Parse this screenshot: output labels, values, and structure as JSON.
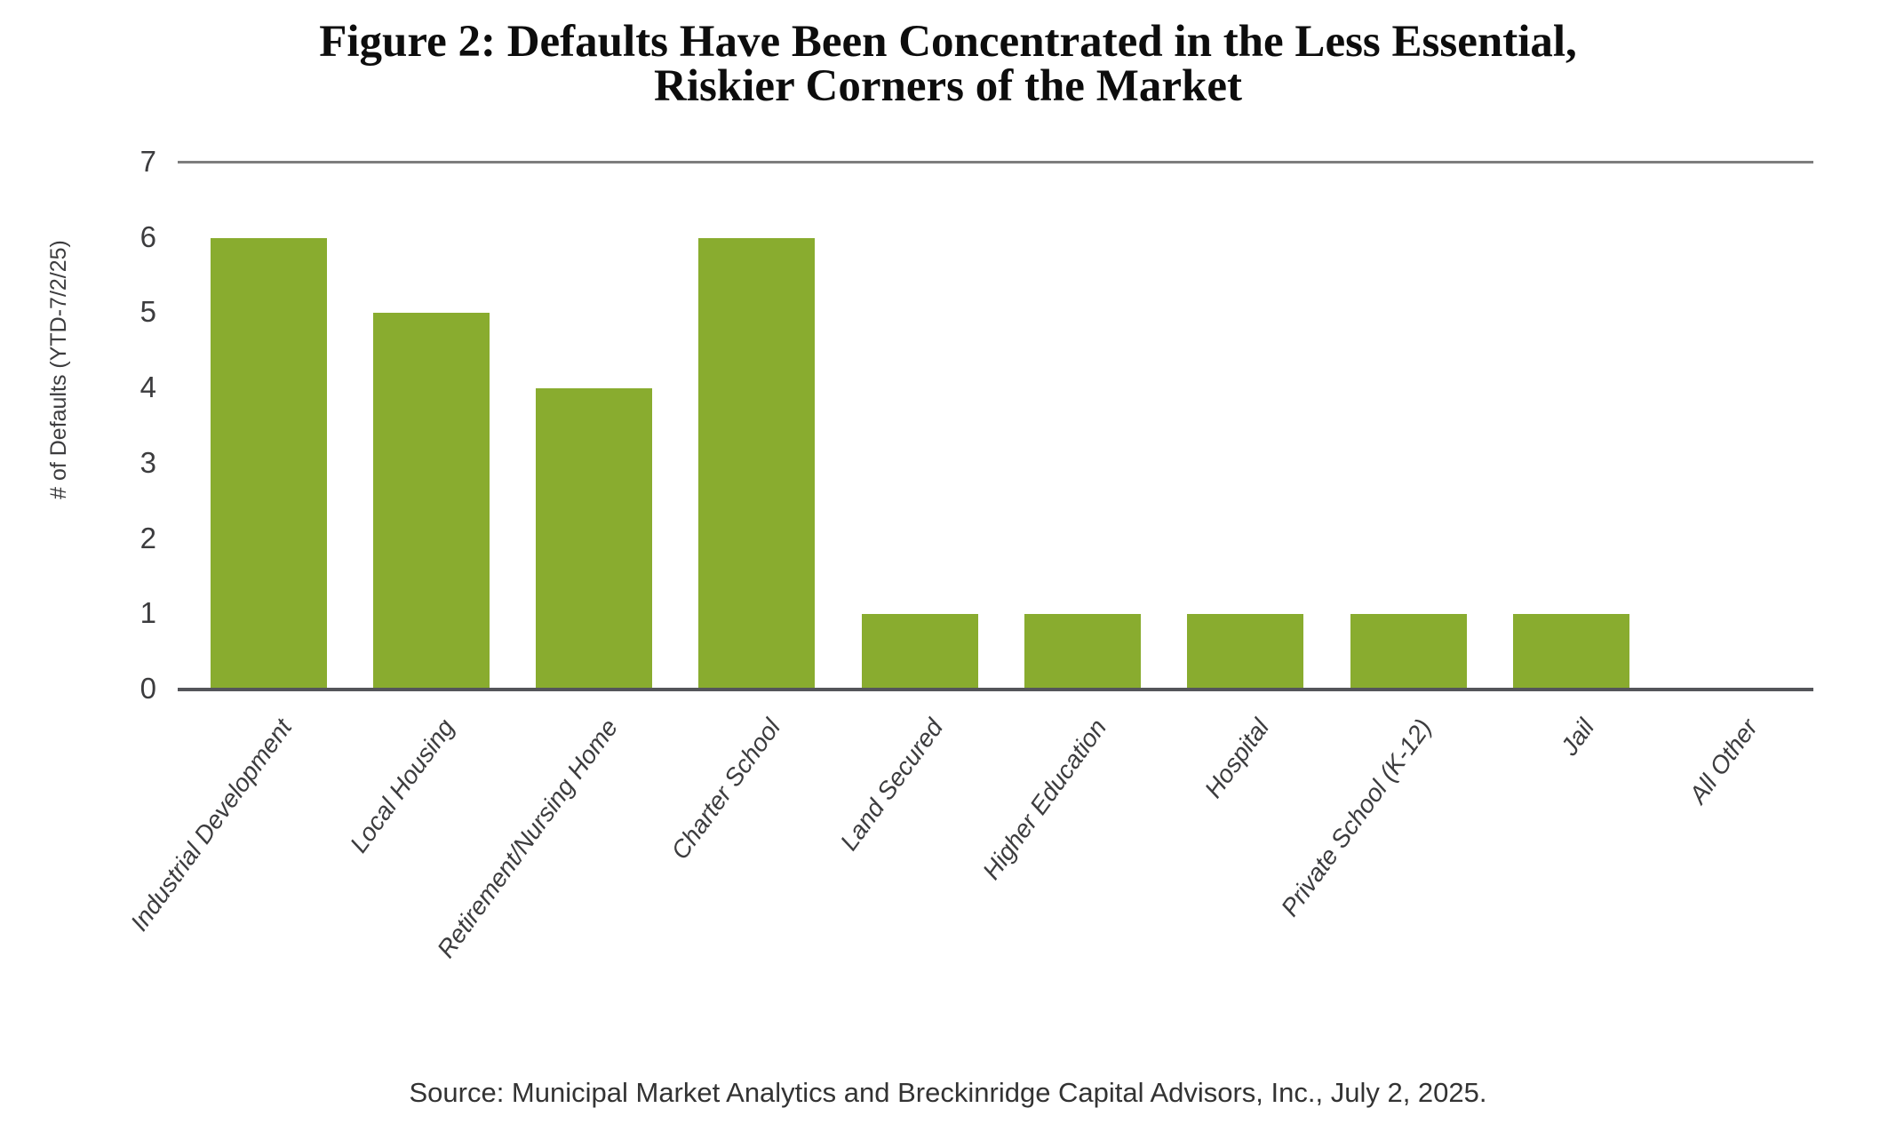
{
  "figure": {
    "title_line1": "Figure 2: Defaults Have Been Concentrated in the Less Essential,",
    "title_line2": "Riskier Corners of the Market",
    "source": "Source: Municipal Market Analytics and Breckinridge Capital Advisors, Inc., July 2, 2025."
  },
  "chart_data": {
    "type": "bar",
    "title": "Figure 2: Defaults Have Been Concentrated in the Less Essential, Riskier Corners of the Market",
    "categories": [
      "Industrial Development",
      "Local Housing",
      "Retirement/Nursing Home",
      "Charter School",
      "Land Secured",
      "Higher Education",
      "Hospital",
      "Private School (K-12)",
      "Jail",
      "All Other"
    ],
    "values": [
      6,
      5,
      4,
      6,
      1,
      1,
      1,
      1,
      1,
      0
    ],
    "xlabel": "",
    "ylabel": "# of Defaults (YTD-7/2/25)",
    "ylim": [
      0,
      7
    ],
    "yticks": [
      0,
      1,
      2,
      3,
      4,
      5,
      6,
      7
    ],
    "grid": "horizontal boundary line at y=7 and baseline at y=0 only",
    "legend": "none",
    "bar_color": "#89AC2F",
    "source": "Source: Municipal Market Analytics and Breckinridge Capital Advisors, Inc., July 2, 2025."
  },
  "colors": {
    "bar": "#89AC2F",
    "axis_line": "#54555A",
    "top_line": "#7D7D7D",
    "tick_text": "#3C3C3E",
    "label_text": "#3C3C3E",
    "title_text": "#0D0D0D",
    "source_text": "#333333",
    "background": "#FFFFFF"
  }
}
